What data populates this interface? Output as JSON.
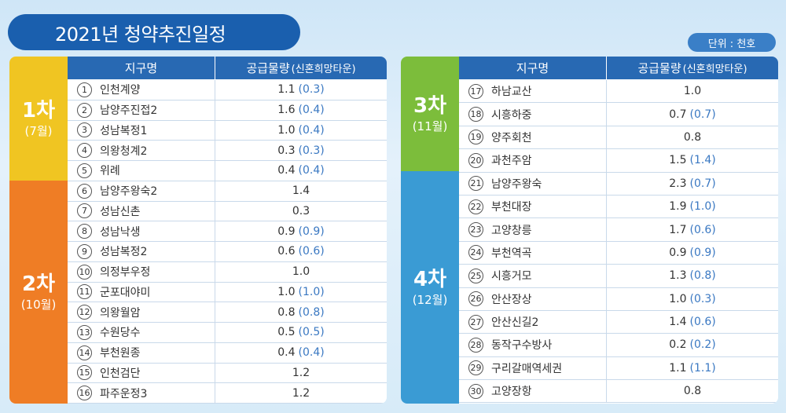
{
  "title": "2021년 청약추진일정",
  "unit": "단위 : 천호",
  "header": {
    "district": "지구명",
    "supply": "공급물량",
    "supply_sub": "(신혼희망타운)"
  },
  "left": {
    "groups": [
      {
        "phase": "1차",
        "month": "(7월)",
        "color": "#f0c522"
      },
      {
        "phase": "2차",
        "month": "(10월)",
        "color": "#ef7d25"
      }
    ],
    "rows": [
      {
        "no": "1",
        "name": "인천계양",
        "supply": "1.1",
        "paren": "(0.3)"
      },
      {
        "no": "2",
        "name": "남양주진접2",
        "supply": "1.6",
        "paren": "(0.4)"
      },
      {
        "no": "3",
        "name": "성남복정1",
        "supply": "1.0",
        "paren": "(0.4)"
      },
      {
        "no": "4",
        "name": "의왕청계2",
        "supply": "0.3",
        "paren": "(0.3)"
      },
      {
        "no": "5",
        "name": "위례",
        "supply": "0.4",
        "paren": "(0.4)"
      },
      {
        "no": "6",
        "name": "남양주왕숙2",
        "supply": "1.4",
        "paren": ""
      },
      {
        "no": "7",
        "name": "성남신촌",
        "supply": "0.3",
        "paren": ""
      },
      {
        "no": "8",
        "name": "성남낙생",
        "supply": "0.9",
        "paren": "(0.9)"
      },
      {
        "no": "9",
        "name": "성남복정2",
        "supply": "0.6",
        "paren": "(0.6)"
      },
      {
        "no": "10",
        "name": "의정부우정",
        "supply": "1.0",
        "paren": ""
      },
      {
        "no": "11",
        "name": "군포대야미",
        "supply": "1.0",
        "paren": "(1.0)"
      },
      {
        "no": "12",
        "name": "의왕월암",
        "supply": "0.8",
        "paren": "(0.8)"
      },
      {
        "no": "13",
        "name": "수원당수",
        "supply": "0.5",
        "paren": "(0.5)"
      },
      {
        "no": "14",
        "name": "부천원종",
        "supply": "0.4",
        "paren": "(0.4)"
      },
      {
        "no": "15",
        "name": "인천검단",
        "supply": "1.2",
        "paren": ""
      },
      {
        "no": "16",
        "name": "파주운정3",
        "supply": "1.2",
        "paren": ""
      }
    ]
  },
  "right": {
    "groups": [
      {
        "phase": "3차",
        "month": "(11월)",
        "color": "#7cbd3b"
      },
      {
        "phase": "4차",
        "month": "(12월)",
        "color": "#3a9bd4"
      }
    ],
    "rows": [
      {
        "no": "17",
        "name": "하남교산",
        "supply": "1.0",
        "paren": ""
      },
      {
        "no": "18",
        "name": "시흥하중",
        "supply": "0.7",
        "paren": "(0.7)"
      },
      {
        "no": "19",
        "name": "양주회천",
        "supply": "0.8",
        "paren": ""
      },
      {
        "no": "20",
        "name": "과천주암",
        "supply": "1.5",
        "paren": "(1.4)"
      },
      {
        "no": "21",
        "name": "남양주왕숙",
        "supply": "2.3",
        "paren": "(0.7)"
      },
      {
        "no": "22",
        "name": "부천대장",
        "supply": "1.9",
        "paren": "(1.0)"
      },
      {
        "no": "23",
        "name": "고양창릉",
        "supply": "1.7",
        "paren": "(0.6)"
      },
      {
        "no": "24",
        "name": "부천역곡",
        "supply": "0.9",
        "paren": "(0.9)"
      },
      {
        "no": "25",
        "name": "시흥거모",
        "supply": "1.3",
        "paren": "(0.8)"
      },
      {
        "no": "26",
        "name": "안산장상",
        "supply": "1.0",
        "paren": "(0.3)"
      },
      {
        "no": "27",
        "name": "안산신길2",
        "supply": "1.4",
        "paren": "(0.6)"
      },
      {
        "no": "28",
        "name": "동작구수방사",
        "supply": "0.2",
        "paren": "(0.2)"
      },
      {
        "no": "29",
        "name": "구리갈매역세권",
        "supply": "1.1",
        "paren": "(1.1)"
      },
      {
        "no": "30",
        "name": "고양장항",
        "supply": "0.8",
        "paren": ""
      }
    ]
  }
}
